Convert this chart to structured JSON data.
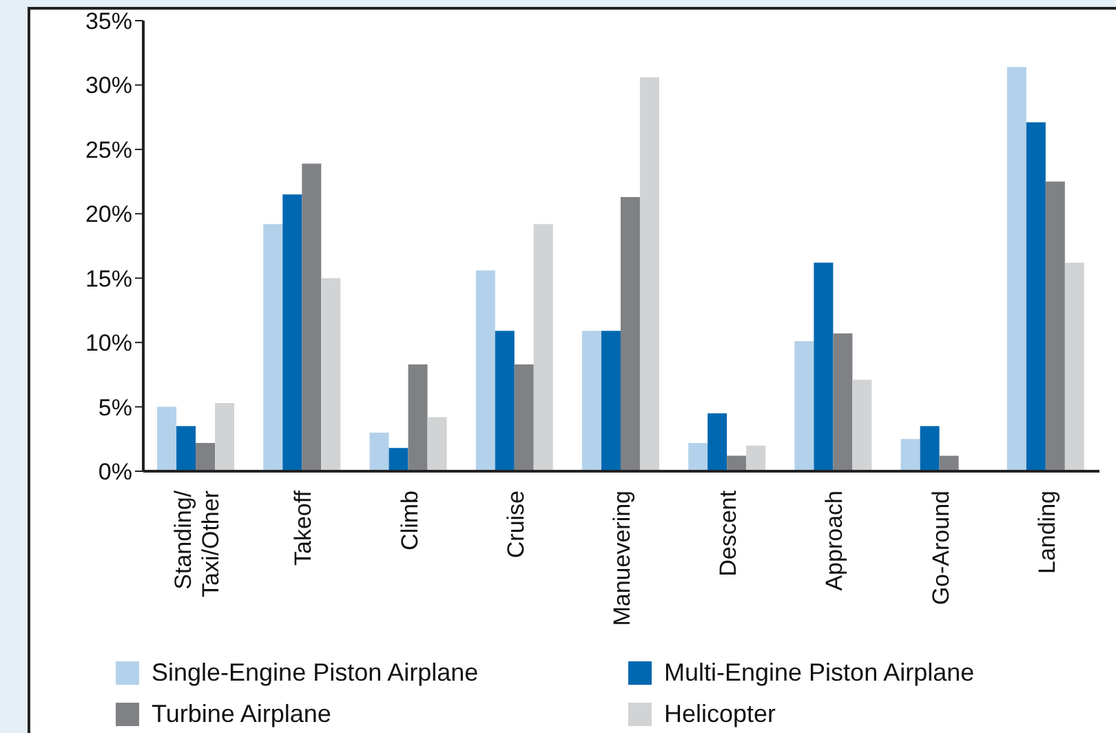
{
  "chart_data": {
    "type": "bar",
    "categories": [
      "Standing/Taxi/Other",
      "Takeoff",
      "Climb",
      "Cruise",
      "Manuevering",
      "Descent",
      "Approach",
      "Go-Around",
      "Landing"
    ],
    "series": [
      {
        "name": "Single-Engine Piston Airplane",
        "color": "#b3d1ea",
        "values": [
          5.0,
          19.2,
          3.0,
          15.6,
          10.9,
          2.2,
          10.1,
          2.5,
          31.4
        ]
      },
      {
        "name": "Multi-Engine Piston Airplane",
        "color": "#0068b1",
        "values": [
          3.5,
          21.5,
          1.8,
          10.9,
          10.9,
          4.5,
          16.2,
          3.5,
          27.1
        ]
      },
      {
        "name": "Turbine Airplane",
        "color": "#808184",
        "values": [
          2.2,
          23.9,
          8.3,
          8.3,
          21.3,
          1.2,
          10.7,
          1.2,
          22.5
        ]
      },
      {
        "name": "Helicopter",
        "color": "#d2d3d5",
        "values": [
          5.3,
          15.0,
          4.2,
          19.2,
          30.6,
          2.0,
          7.1,
          null,
          16.2
        ]
      }
    ],
    "ylim": [
      0,
      35
    ],
    "yticks": [
      {
        "value": 0,
        "label": "0%"
      },
      {
        "value": 5,
        "label": "5%"
      },
      {
        "value": 10,
        "label": "10%"
      },
      {
        "value": 15,
        "label": "15%"
      },
      {
        "value": 20,
        "label": "20%"
      },
      {
        "value": 25,
        "label": "25%"
      },
      {
        "value": 30,
        "label": "30%"
      },
      {
        "value": 35,
        "label": "35%"
      }
    ],
    "grid": false,
    "legend": "bottom"
  }
}
